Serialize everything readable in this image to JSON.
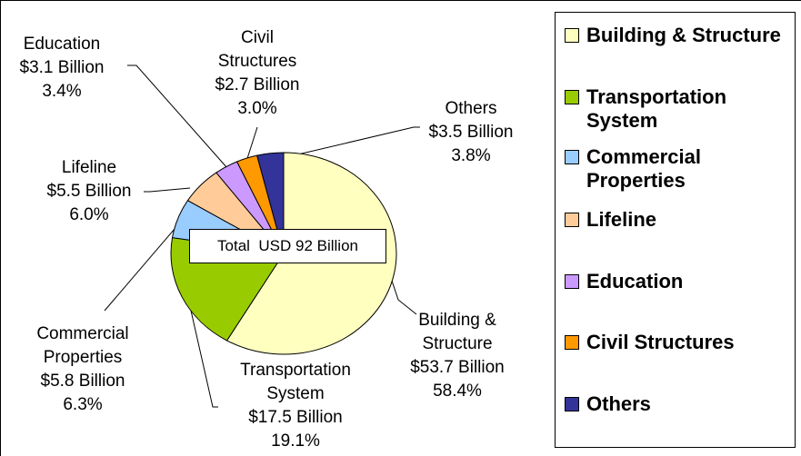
{
  "chart_data": {
    "type": "pie",
    "categories": [
      "Building & Structure",
      "Transportation System",
      "Commercial Properties",
      "Lifeline",
      "Education",
      "Civil Structures",
      "Others"
    ],
    "values": [
      58.4,
      19.1,
      6.3,
      6.0,
      3.4,
      3.0,
      3.8
    ],
    "value_labels": [
      "58.4%",
      "19.1%",
      "6.3%",
      "6.0%",
      "3.4%",
      "3.0%",
      "3.8%"
    ],
    "amounts": [
      53.7,
      17.5,
      5.8,
      5.5,
      3.1,
      2.7,
      3.5
    ],
    "amount_labels": [
      "$53.7 Billion",
      "$17.5 Billion",
      "$5.8 Billion",
      "$5.5 Billion",
      "$3.1 Billion",
      "$2.7 Billion",
      "$3.5 Billion"
    ],
    "colors": [
      "#ffffc0",
      "#99cc00",
      "#99ccff",
      "#ffcc99",
      "#cc99ff",
      "#ff9900",
      "#333399"
    ],
    "annotation": "Total  USD 92 Billion",
    "legend": "right"
  }
}
